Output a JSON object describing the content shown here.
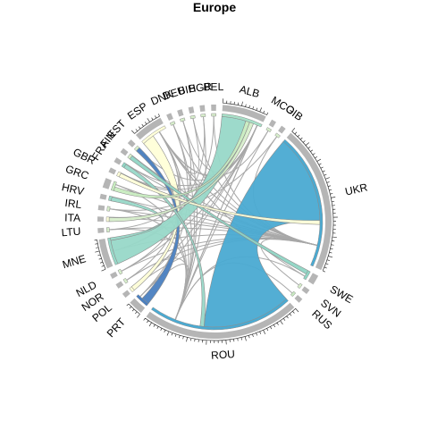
{
  "title": "Europe",
  "colors": {
    "background": "#ffffff",
    "axis_track": "#b5b5b5",
    "thin_link": "#a8a8a8",
    "ribbon_border": "#8c8c8c"
  },
  "sectors": [
    {
      "label": "ALB",
      "weight": 9,
      "color": "#a8e0c8"
    },
    {
      "label": "MCO",
      "weight": 1,
      "color": "#d7eecb"
    },
    {
      "label": "GIB",
      "weight": 1,
      "color": "#d7eecb"
    },
    {
      "label": "UKR",
      "weight": 30,
      "color": "#4aaad2"
    },
    {
      "label": "SWE",
      "weight": 2,
      "color": "#8fd5c4"
    },
    {
      "label": "SVN",
      "weight": 1,
      "color": "#d7eecb"
    },
    {
      "label": "RUS",
      "weight": 1,
      "color": "#c8e8c0"
    },
    {
      "label": "ROU",
      "weight": 32,
      "color": "#4aaad2"
    },
    {
      "label": "PRT",
      "weight": 3,
      "color": "#4a7fc0"
    },
    {
      "label": "POL",
      "weight": 1,
      "color": "#ffffd8"
    },
    {
      "label": "NOR",
      "weight": 1,
      "color": "#d7eecb"
    },
    {
      "label": "NLD",
      "weight": 1,
      "color": "#d7eecb"
    },
    {
      "label": "MNE",
      "weight": 6,
      "color": "#98d8c8"
    },
    {
      "label": "LTU",
      "weight": 1,
      "color": "#d7eecb"
    },
    {
      "label": "ITA",
      "weight": 1,
      "color": "#ffffd8"
    },
    {
      "label": "IRL",
      "weight": 1,
      "color": "#d7eecb"
    },
    {
      "label": "HRV",
      "weight": 1,
      "color": "#98d8c8"
    },
    {
      "label": "GRC",
      "weight": 2,
      "color": "#c8ecc0"
    },
    {
      "label": "GBR",
      "weight": 1,
      "color": "#ffffd8"
    },
    {
      "label": "FRA",
      "weight": 1,
      "color": "#8fd5c4"
    },
    {
      "label": "FIN",
      "weight": 1,
      "color": "#d7eecb"
    },
    {
      "label": "EST",
      "weight": 1,
      "color": "#d7eecb"
    },
    {
      "label": "ESP",
      "weight": 6,
      "color": "#ffffd8"
    },
    {
      "label": "DNK",
      "weight": 1,
      "color": "#d7eecb"
    },
    {
      "label": "DEU",
      "weight": 1,
      "color": "#d7eecb"
    },
    {
      "label": "BIH",
      "weight": 1,
      "color": "#d7eecb"
    },
    {
      "label": "BGR",
      "weight": 1,
      "color": "#d7eecb"
    },
    {
      "label": "BEL",
      "weight": 1,
      "color": "#d7eecb"
    }
  ],
  "ribbons": [
    {
      "from": "UKR",
      "to": "ROU",
      "value": 22,
      "color": "#4aaad2"
    },
    {
      "from": "ESP",
      "to": "POL",
      "value": 3,
      "color": "#ffffd8"
    },
    {
      "from": "EST",
      "to": "PRT",
      "value": 2,
      "color": "#4a7fc0"
    },
    {
      "from": "ALB",
      "to": "MNE",
      "value": 6,
      "color": "#98d8c8"
    },
    {
      "from": "FIN",
      "to": "SWE",
      "value": 1,
      "color": "#8fd5c4"
    },
    {
      "from": "FRA",
      "to": "ROU",
      "value": 1,
      "color": "#98d8c8"
    },
    {
      "from": "GBR",
      "to": "UKR",
      "value": 1,
      "color": "#ffffd8"
    },
    {
      "from": "GRC",
      "to": "ALB",
      "value": 1,
      "color": "#c8ecc0"
    },
    {
      "from": "HRV",
      "to": "MNE",
      "value": 1,
      "color": "#98d8c8"
    },
    {
      "from": "ITA",
      "to": "ALB",
      "value": 1,
      "color": "#d7eecb"
    }
  ],
  "links": [
    [
      "DNK",
      "UKR"
    ],
    [
      "DNK",
      "PRT"
    ],
    [
      "DEU",
      "ROU"
    ],
    [
      "DEU",
      "NLD"
    ],
    [
      "BIH",
      "UKR"
    ],
    [
      "BIH",
      "ESP"
    ],
    [
      "BGR",
      "ROU"
    ],
    [
      "BGR",
      "LTU"
    ],
    [
      "BEL",
      "UKR"
    ],
    [
      "BEL",
      "MNE"
    ],
    [
      "ALB",
      "ROU"
    ],
    [
      "ALB",
      "GBR"
    ],
    [
      "MCO",
      "ROU"
    ],
    [
      "MCO",
      "ESP"
    ],
    [
      "GIB",
      "UKR"
    ],
    [
      "GIB",
      "ITA"
    ],
    [
      "UKR",
      "NOR"
    ],
    [
      "UKR",
      "ESP"
    ],
    [
      "UKR",
      "FRA"
    ],
    [
      "UKR",
      "IRL"
    ],
    [
      "UKR",
      "LTU"
    ],
    [
      "UKR",
      "GRC"
    ],
    [
      "ROU",
      "ESP"
    ],
    [
      "ROU",
      "EST"
    ],
    [
      "ROU",
      "DNK"
    ],
    [
      "ROU",
      "ALB"
    ],
    [
      "RUS",
      "ROU"
    ],
    [
      "SVN",
      "UKR"
    ],
    [
      "SWE",
      "ROU"
    ],
    [
      "SWE",
      "ESP"
    ],
    [
      "NLD",
      "UKR"
    ],
    [
      "NLD",
      "ALB"
    ],
    [
      "NOR",
      "ROU"
    ],
    [
      "NOR",
      "ESP"
    ],
    [
      "POL",
      "UKR"
    ],
    [
      "POL",
      "ALB"
    ],
    [
      "PRT",
      "ROU"
    ],
    [
      "PRT",
      "ALB"
    ],
    [
      "MNE",
      "UKR"
    ],
    [
      "MNE",
      "ESP"
    ],
    [
      "LTU",
      "ROU"
    ],
    [
      "ITA",
      "UKR"
    ],
    [
      "IRL",
      "ROU"
    ],
    [
      "IRL",
      "ALB"
    ],
    [
      "HRV",
      "UKR"
    ],
    [
      "GRC",
      "ROU"
    ],
    [
      "GBR",
      "ESP"
    ],
    [
      "FRA",
      "ALB"
    ],
    [
      "FIN",
      "UKR"
    ],
    [
      "EST",
      "ALB"
    ],
    [
      "ESP",
      "ALB"
    ],
    [
      "DEU",
      "ALB"
    ]
  ]
}
